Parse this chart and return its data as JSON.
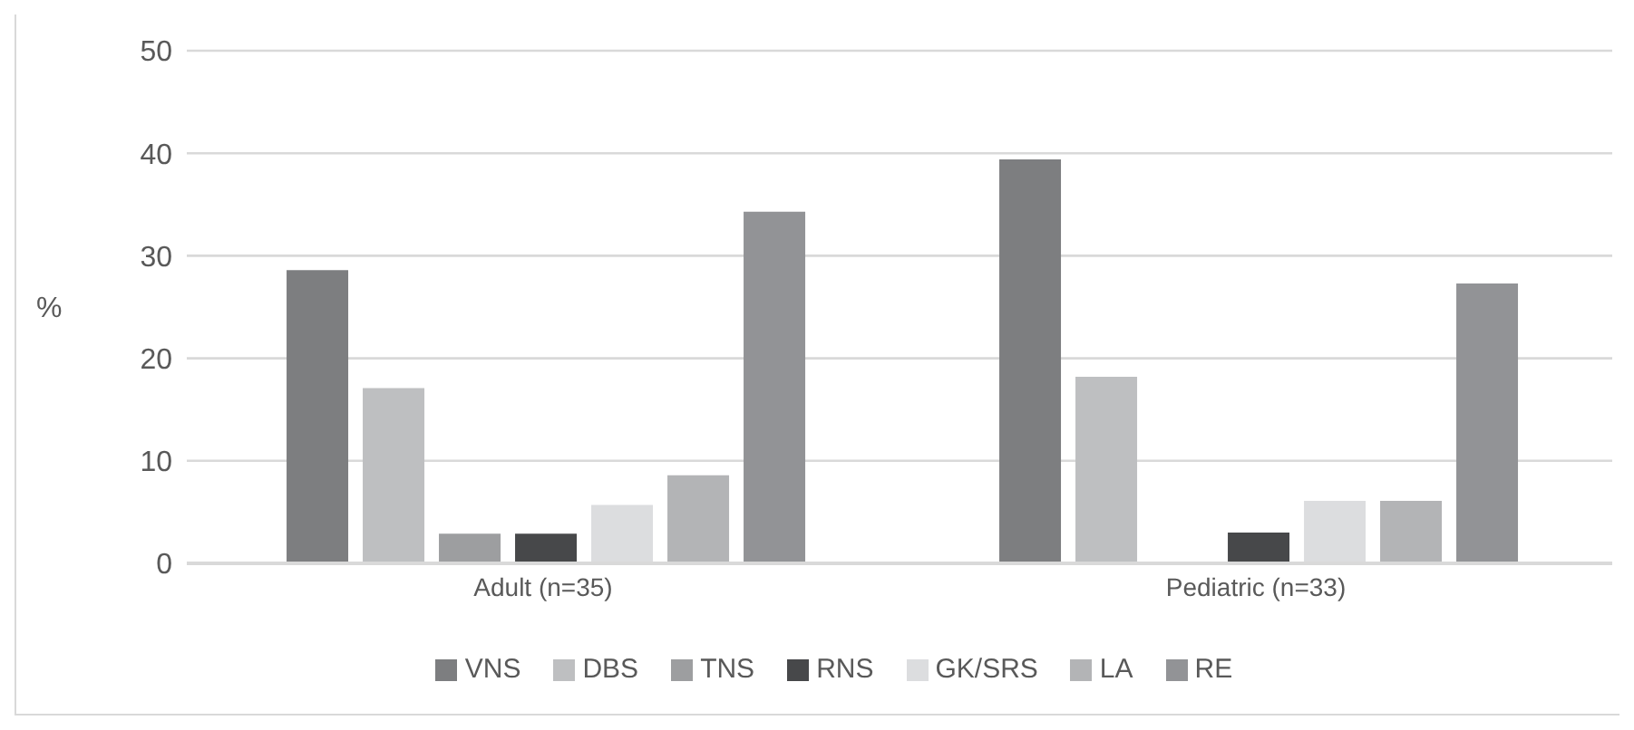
{
  "chart_data": {
    "type": "bar",
    "ylabel": "%",
    "categories": [
      "Adult (n=35)",
      "Pediatric (n=33)"
    ],
    "series": [
      {
        "name": "VNS",
        "color": "#7d7e80",
        "values": [
          28.6,
          39.4
        ]
      },
      {
        "name": "DBS",
        "color": "#bebfc1",
        "values": [
          17.1,
          18.2
        ]
      },
      {
        "name": "TNS",
        "color": "#9d9ea0",
        "values": [
          2.9,
          0
        ]
      },
      {
        "name": "RNS",
        "color": "#47484a",
        "values": [
          2.9,
          3.0
        ]
      },
      {
        "name": "GK/SRS",
        "color": "#dcdddf",
        "values": [
          5.7,
          6.1
        ]
      },
      {
        "name": "LA",
        "color": "#b3b4b6",
        "values": [
          8.6,
          6.1
        ]
      },
      {
        "name": "RE",
        "color": "#929396",
        "values": [
          34.3,
          27.3
        ]
      }
    ],
    "ylim": [
      0,
      50
    ],
    "yticks": [
      0,
      10,
      20,
      30,
      40,
      50
    ],
    "grid": "y",
    "legend": "bottom"
  }
}
